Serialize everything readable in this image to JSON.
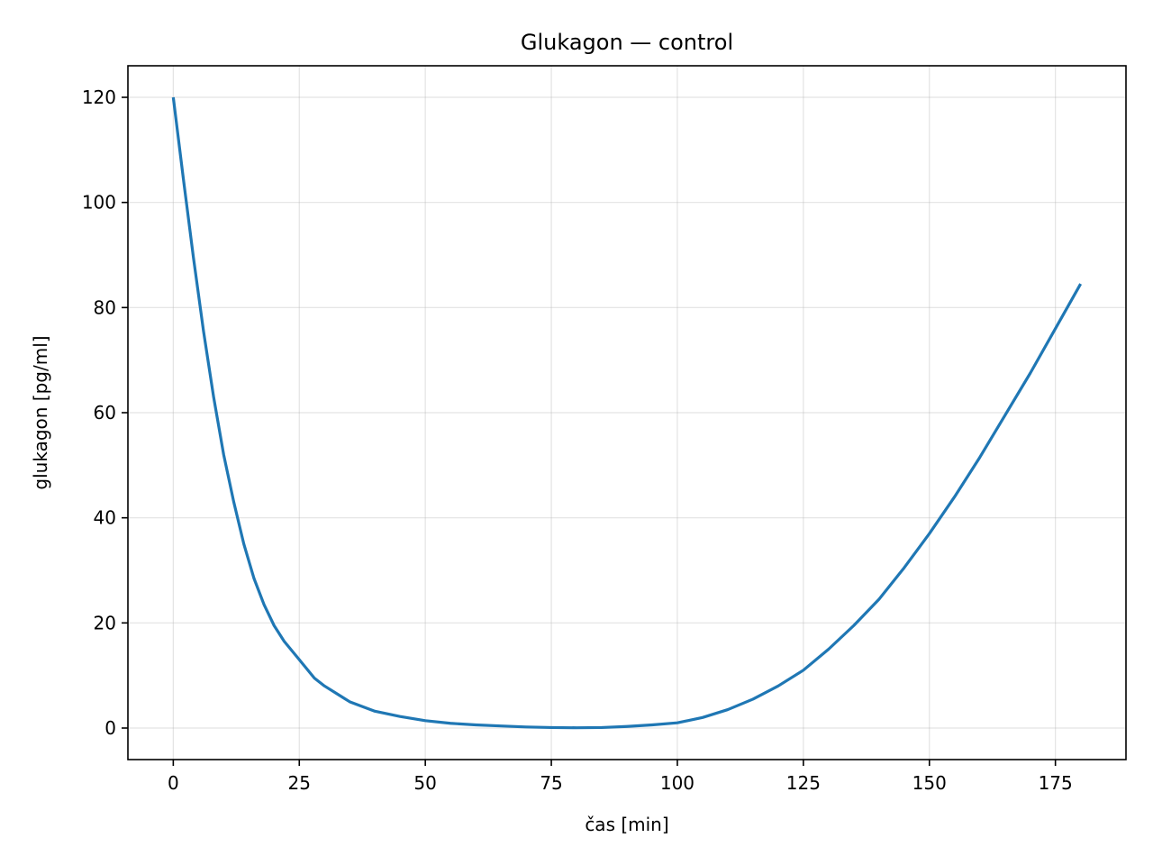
{
  "chart_data": {
    "type": "line",
    "title": "Glukagon — control",
    "xlabel": "čas [min]",
    "ylabel": "glukagon [pg/ml]",
    "xlim": [
      -9,
      189
    ],
    "ylim": [
      -6,
      126
    ],
    "xticks": [
      0,
      25,
      50,
      75,
      100,
      125,
      150,
      175
    ],
    "yticks": [
      0,
      20,
      40,
      60,
      80,
      100,
      120
    ],
    "grid": true,
    "series": [
      {
        "color": "#1f77b4",
        "x": [
          0,
          2,
          4,
          6,
          8,
          10,
          12,
          14,
          16,
          18,
          20,
          22,
          25,
          28,
          30,
          35,
          40,
          45,
          50,
          55,
          60,
          65,
          70,
          75,
          80,
          85,
          90,
          95,
          100,
          105,
          110,
          115,
          120,
          125,
          130,
          135,
          140,
          145,
          150,
          155,
          160,
          165,
          170,
          175,
          180
        ],
        "y": [
          120.0,
          104.5,
          89.5,
          75.5,
          63.0,
          52.0,
          43.0,
          35.0,
          28.5,
          23.5,
          19.5,
          16.5,
          13.0,
          9.5,
          8.0,
          5.0,
          3.2,
          2.2,
          1.4,
          0.9,
          0.6,
          0.4,
          0.2,
          0.1,
          0.05,
          0.1,
          0.3,
          0.6,
          1.0,
          2.0,
          3.5,
          5.5,
          8.0,
          11.0,
          15.0,
          19.5,
          24.5,
          30.5,
          37.0,
          44.0,
          51.5,
          59.5,
          67.5,
          76.0,
          84.5
        ]
      }
    ]
  }
}
